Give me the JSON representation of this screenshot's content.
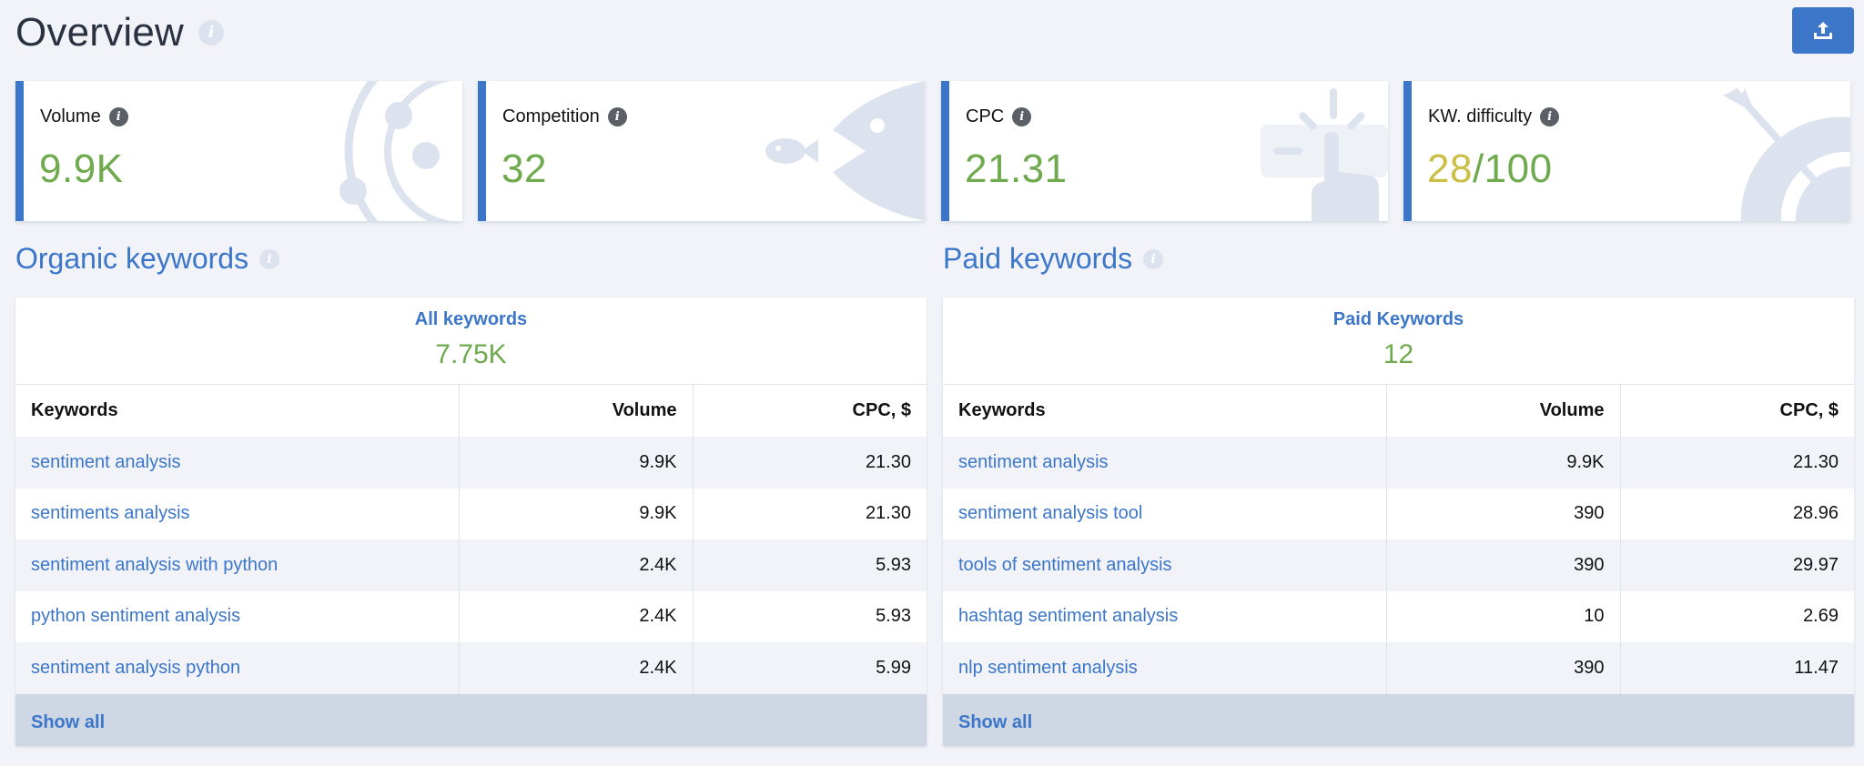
{
  "header": {
    "title": "Overview",
    "info_icon": "info-icon",
    "export_icon": "upload-icon"
  },
  "colors": {
    "accent": "#3c76c9",
    "value_green": "#6faa4e",
    "value_yellow": "#cbbe45",
    "background": "#f1f3f8"
  },
  "cards": [
    {
      "label": "Volume",
      "value": "9.9K",
      "illustration": "orbit-illustration"
    },
    {
      "label": "Competition",
      "value": "32",
      "illustration": "fish-illustration"
    },
    {
      "label": "CPC",
      "value": "21.31",
      "illustration": "click-illustration"
    },
    {
      "label": "KW. difficulty",
      "value_current": "28",
      "value_max": "/100",
      "illustration": "target-illustration"
    }
  ],
  "organic": {
    "title": "Organic keywords",
    "summary_label": "All keywords",
    "summary_value": "7.75K",
    "columns": [
      "Keywords",
      "Volume",
      "CPC, $"
    ],
    "rows": [
      [
        "sentiment analysis",
        "9.9K",
        "21.30"
      ],
      [
        "sentiments analysis",
        "9.9K",
        "21.30"
      ],
      [
        "sentiment analysis with python",
        "2.4K",
        "5.93"
      ],
      [
        "python sentiment analysis",
        "2.4K",
        "5.93"
      ],
      [
        "sentiment analysis python",
        "2.4K",
        "5.99"
      ]
    ],
    "show_all": "Show all"
  },
  "paid": {
    "title": "Paid keywords",
    "summary_label": "Paid Keywords",
    "summary_value": "12",
    "columns": [
      "Keywords",
      "Volume",
      "CPC, $"
    ],
    "rows": [
      [
        "sentiment analysis",
        "9.9K",
        "21.30"
      ],
      [
        "sentiment analysis tool",
        "390",
        "28.96"
      ],
      [
        "tools of sentiment analysis",
        "390",
        "29.97"
      ],
      [
        "hashtag sentiment analysis",
        "10",
        "2.69"
      ],
      [
        "nlp sentiment analysis",
        "390",
        "11.47"
      ]
    ],
    "show_all": "Show all"
  }
}
